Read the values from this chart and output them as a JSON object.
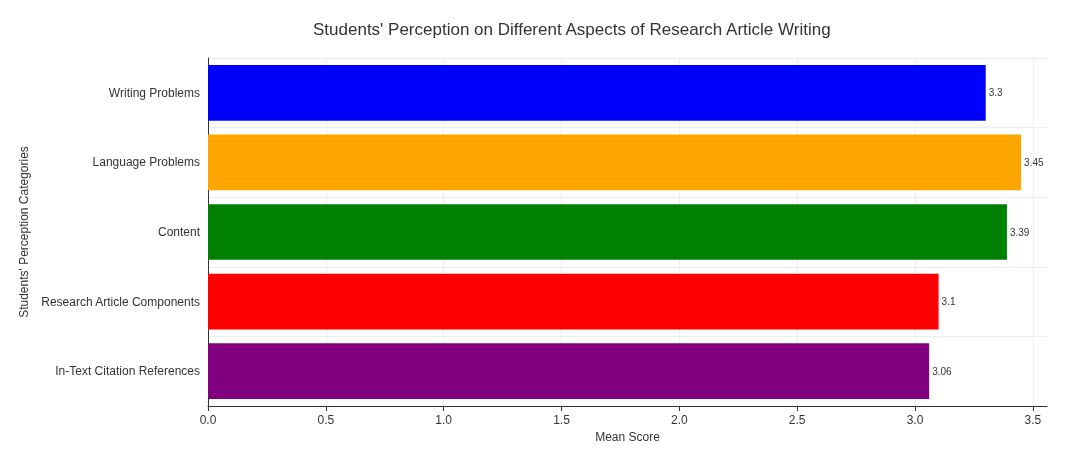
{
  "chart_data": {
    "type": "bar",
    "orientation": "horizontal",
    "title": "Students' Perception on Different Aspects of Research Article Writing",
    "xlabel": "Mean Score",
    "ylabel": "Students' Perception Categories",
    "categories": [
      "Writing Problems",
      "Language Problems",
      "Content",
      "Research Article Components",
      "In-Text Citation References"
    ],
    "values": [
      3.3,
      3.45,
      3.39,
      3.1,
      3.06
    ],
    "colors": [
      "#0000ff",
      "#ffa500",
      "#008000",
      "#ff0000",
      "#800080"
    ],
    "data_labels": true,
    "grid": true,
    "xlim": [
      0,
      3.56
    ],
    "xticks": [
      {
        "value": 0,
        "label": "0.0"
      },
      {
        "value": 0.5,
        "label": "0.5"
      },
      {
        "value": 1,
        "label": "1.0"
      },
      {
        "value": 1.5,
        "label": "1.5"
      },
      {
        "value": 2,
        "label": "2.0"
      },
      {
        "value": 2.5,
        "label": "2.5"
      },
      {
        "value": 3,
        "label": "3.0"
      },
      {
        "value": 3.5,
        "label": "3.5"
      }
    ]
  }
}
